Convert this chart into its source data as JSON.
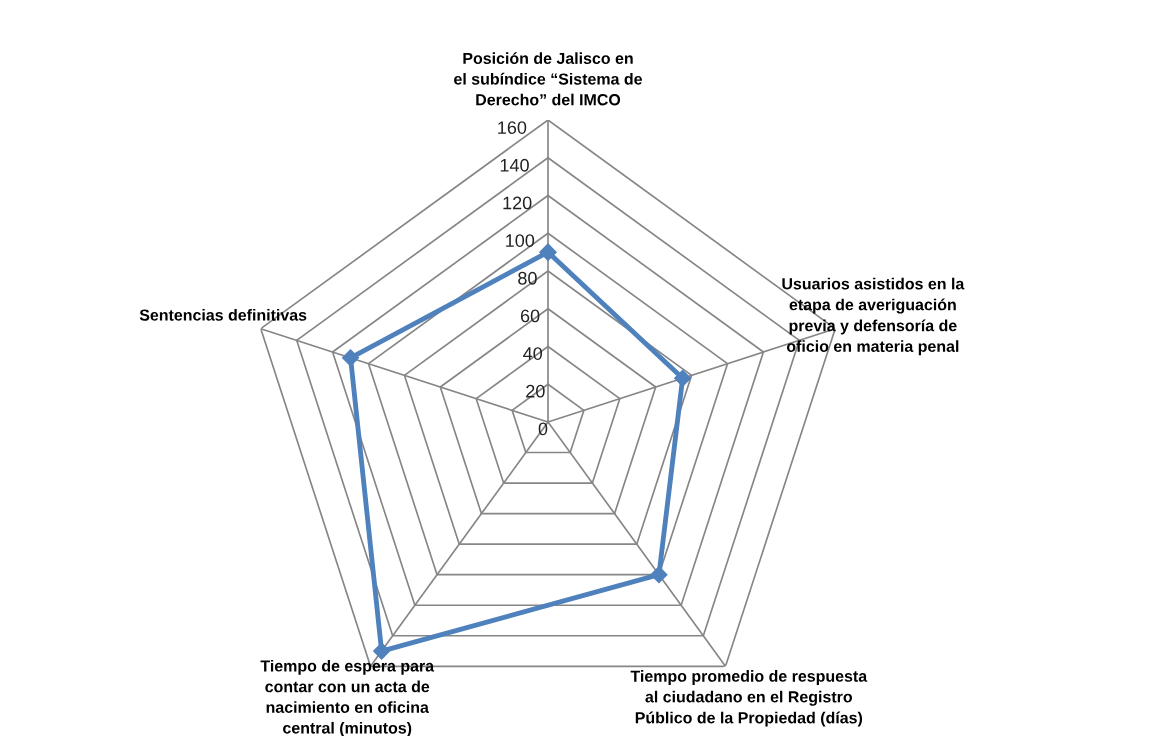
{
  "chart_data": {
    "type": "radar",
    "categories": [
      "Posición de Jalisco en el subíndice “Sistema de Derecho” del IMCO",
      "Usuarios asistidos en la etapa de averiguación previa y defensoría de oficio en materia penal",
      "Tiempo promedio de respuesta al ciudadano en el Registro Público de la Propiedad (días)",
      "Tiempo de espera para contar con un acta de nacimiento en oficina central (minutos)",
      "Sentencias definitivas"
    ],
    "series": [
      {
        "color": "#4f81bd",
        "values": [
          90,
          75,
          100,
          150,
          110
        ]
      }
    ],
    "ylim": [
      0,
      160
    ],
    "yticks": [
      0,
      20,
      40,
      60,
      80,
      100,
      120,
      140,
      160
    ],
    "grid": true,
    "marker": "diamond"
  }
}
